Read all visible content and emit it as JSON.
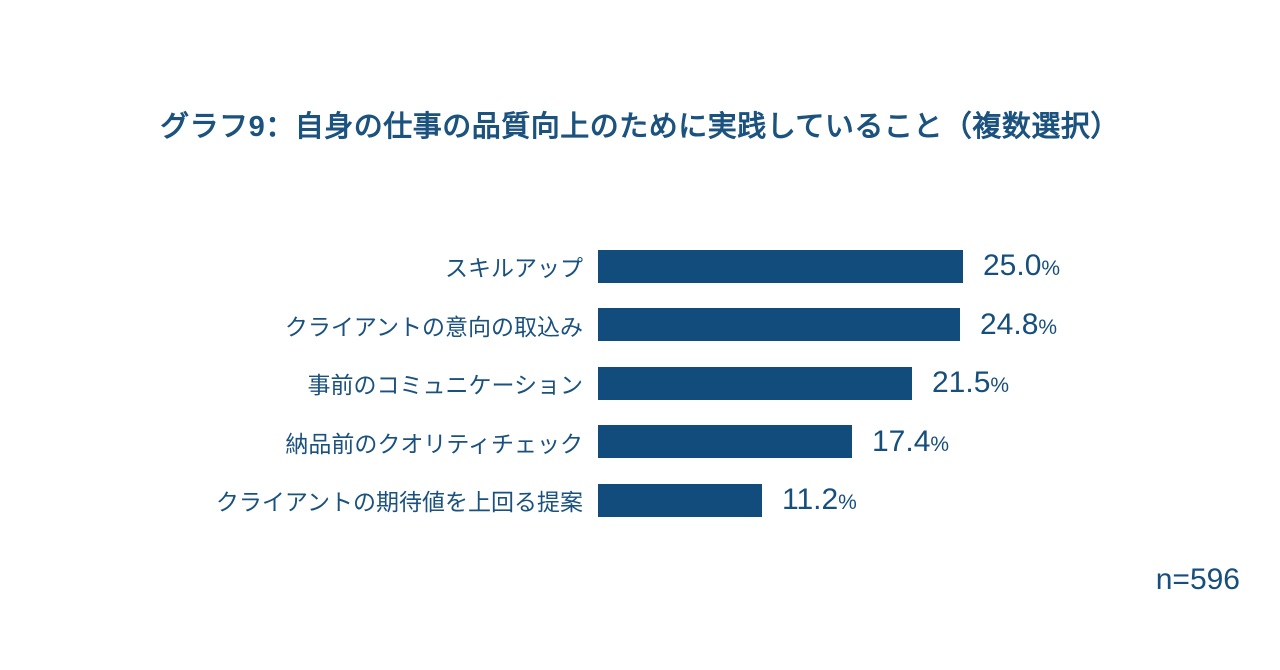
{
  "page": {
    "background": "#ffffff"
  },
  "chart_data": {
    "type": "bar",
    "orientation": "horizontal",
    "title": "グラフ9：自身の仕事の品質向上のために実践していること（複数選択）",
    "categories": [
      "スキルアップ",
      "クライアントの意向の取込み",
      "事前のコミュニケーション",
      "納品前のクオリティチェック",
      "クライアントの期待値を上回る提案"
    ],
    "values": [
      25.0,
      24.8,
      21.5,
      17.4,
      11.2
    ],
    "value_labels": [
      "25.0",
      "24.8",
      "21.5",
      "17.4",
      "11.2"
    ],
    "unit": "%",
    "xlim": [
      0,
      25.0
    ],
    "sample_size_label": "n=596",
    "bar_color": "#124c7c",
    "text_color": "#1a517e",
    "grid": false,
    "legend": false
  }
}
